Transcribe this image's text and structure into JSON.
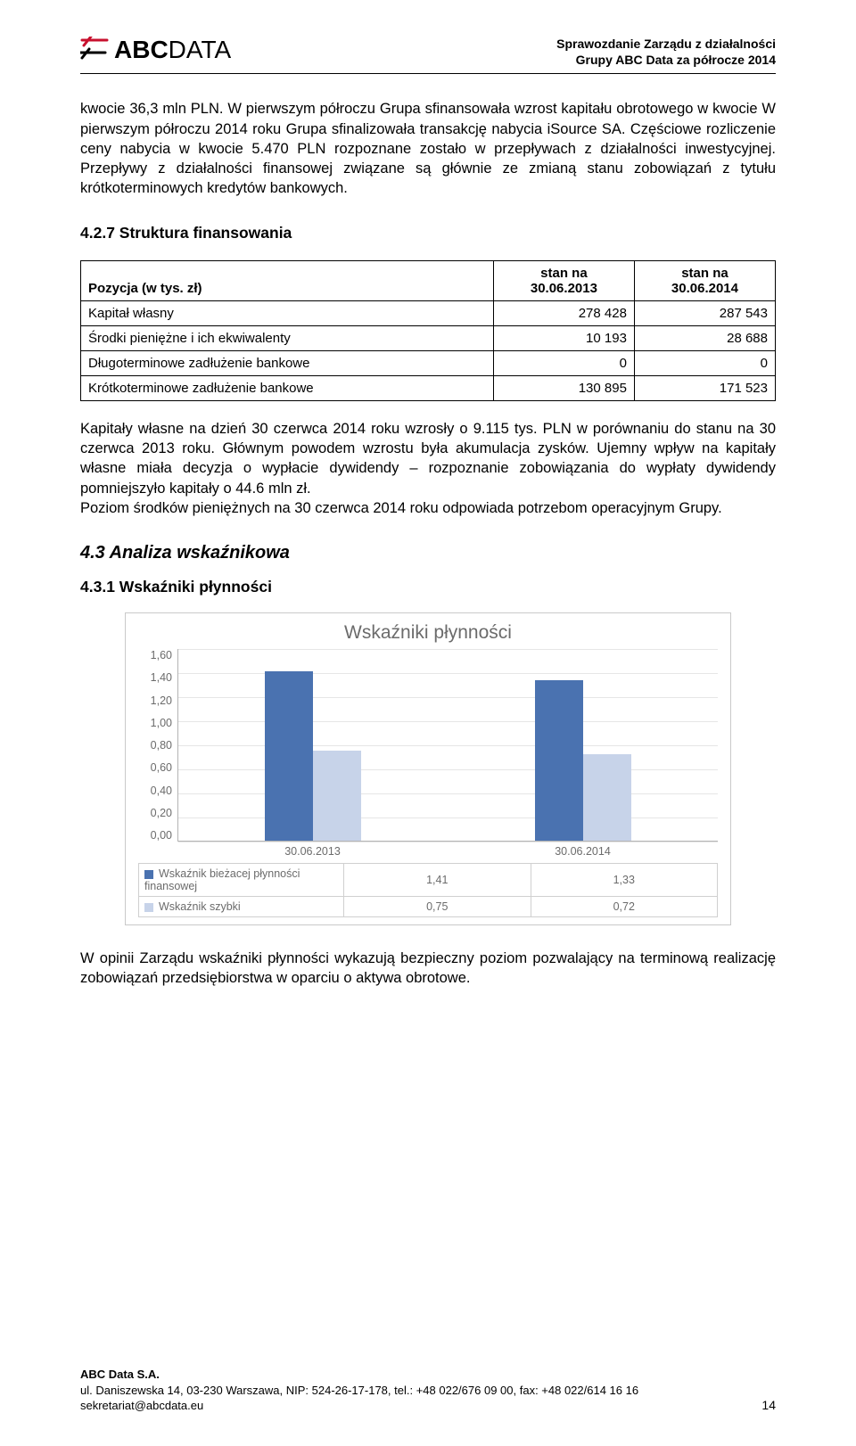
{
  "header": {
    "logo_main": "ABC",
    "logo_sub": "DATA",
    "right_line1": "Sprawozdanie Zarządu z działalności",
    "right_line2": "Grupy ABC Data za półrocze 2014"
  },
  "para1": "kwocie 36,3 mln PLN. W pierwszym półroczu Grupa sfinansowała wzrost kapitału obrotowego w kwocie W pierwszym półroczu 2014 roku Grupa sfinalizowała transakcję nabycia iSource SA. Częściowe rozliczenie ceny nabycia w kwocie 5.470 PLN rozpoznane zostało w przepływach z działalności inwestycyjnej. Przepływy z działalności finansowej związane są głównie ze zmianą stanu zobowiązań z tytułu krótkoterminowych kredytów bankowych.",
  "heading_427": "4.2.7  Struktura finansowania",
  "table1": {
    "col0_header": "Pozycja (w tys. zł)",
    "col1_header_1": "stan na",
    "col1_header_2": "30.06.2013",
    "col2_header_1": "stan na",
    "col2_header_2": "30.06.2014",
    "rows": [
      {
        "label": "Kapitał własny",
        "v1": "278 428",
        "v2": "287 543"
      },
      {
        "label": "Środki pieniężne i ich ekwiwalenty",
        "v1": "10 193",
        "v2": "28 688"
      },
      {
        "label": "Długoterminowe zadłużenie bankowe",
        "v1": "0",
        "v2": "0"
      },
      {
        "label": "Krótkoterminowe zadłużenie bankowe",
        "v1": "130 895",
        "v2": "171 523"
      }
    ]
  },
  "para2": "Kapitały własne na dzień 30 czerwca 2014 roku wzrosły o 9.115 tys. PLN w porównaniu do stanu na 30 czerwca 2013 roku. Głównym powodem wzrostu była akumulacja zysków. Ujemny wpływ na kapitały własne miała decyzja o wypłacie dywidendy – rozpoznanie zobowiązania do wypłaty dywidendy pomniejszyło kapitały o 44.6 mln zł.",
  "para3": "Poziom środków pieniężnych na 30 czerwca 2014 roku odpowiada potrzebom operacyjnym Grupy.",
  "heading_43": "4.3  Analiza wskaźnikowa",
  "heading_431": "4.3.1  Wskaźniki płynności",
  "chart": {
    "title": "Wskaźniki płynności",
    "ymax": 1.6,
    "ytick_step": 0.2,
    "yticks": [
      "1,60",
      "1,40",
      "1,20",
      "1,00",
      "0,80",
      "0,60",
      "0,40",
      "0,20",
      "0,00"
    ],
    "categories": [
      "30.06.2013",
      "30.06.2014"
    ],
    "series": [
      {
        "name": "Wskaźnik bieżacej płynności finansowej",
        "color": "#4a72b0",
        "values": [
          1.41,
          1.33
        ]
      },
      {
        "name": "Wskaźnik szybki",
        "color": "#c7d3e9",
        "values": [
          0.75,
          0.72
        ]
      }
    ],
    "legend_rows": [
      {
        "swatch": "#4a72b0",
        "label": "Wskaźnik bieżacej płynności finansowej",
        "v1": "1,41",
        "v2": "1,33"
      },
      {
        "swatch": "#c7d3e9",
        "label": "Wskaźnik szybki",
        "v1": "0,75",
        "v2": "0,72"
      }
    ]
  },
  "para4": "W opinii Zarządu wskaźniki płynności wykazują bezpieczny poziom pozwalający na terminową realizację zobowiązań przedsiębiorstwa w oparciu o aktywa obrotowe.",
  "footer": {
    "company": "ABC Data S.A.",
    "address": "ul. Daniszewska 14, 03-230 Warszawa, NIP: 524-26-17-178, tel.: +48 022/676 09 00, fax: +48 022/614 16 16",
    "email": "sekretariat@abcdata.eu",
    "page": "14"
  }
}
